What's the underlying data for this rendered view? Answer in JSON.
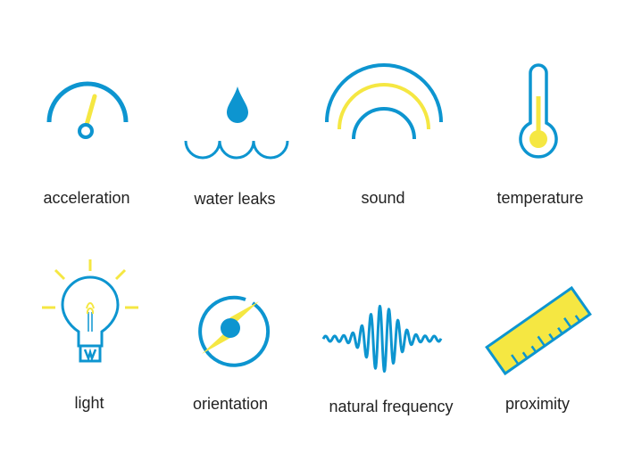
{
  "colors": {
    "blue": "#0d95d0",
    "yellow": "#f5e742",
    "text": "#222222"
  },
  "sensors": [
    {
      "label": "acceleration",
      "icon": "gauge-icon"
    },
    {
      "label": "water leaks",
      "icon": "water-drop-icon"
    },
    {
      "label": "sound",
      "icon": "sound-waves-icon"
    },
    {
      "label": "temperature",
      "icon": "thermometer-icon"
    },
    {
      "label": "light",
      "icon": "light-bulb-icon"
    },
    {
      "label": "orientation",
      "icon": "compass-icon"
    },
    {
      "label": "natural frequency",
      "icon": "waveform-icon"
    },
    {
      "label": "proximity",
      "icon": "ruler-icon"
    }
  ]
}
